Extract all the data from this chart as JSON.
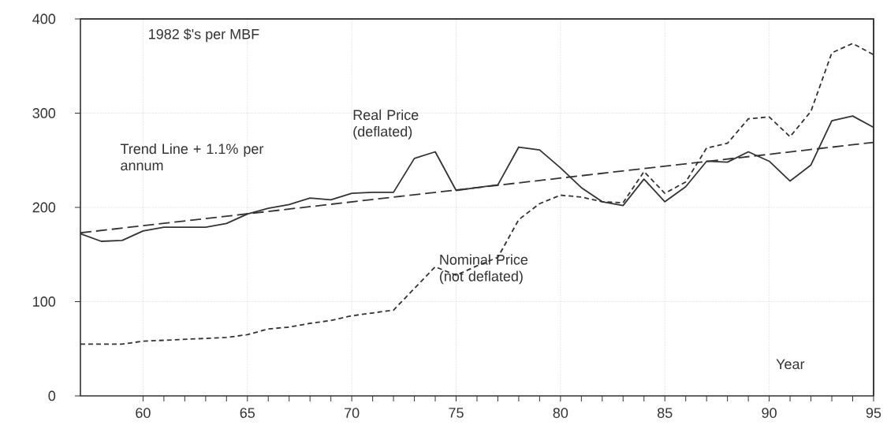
{
  "chart_data": {
    "type": "line",
    "ylabel": "1982 $'s per MBF",
    "xlabel": "Year",
    "x": [
      57,
      58,
      59,
      60,
      61,
      62,
      63,
      64,
      65,
      66,
      67,
      68,
      69,
      70,
      71,
      72,
      73,
      74,
      75,
      76,
      77,
      78,
      79,
      80,
      81,
      82,
      83,
      84,
      85,
      86,
      87,
      88,
      89,
      90,
      91,
      92,
      93,
      94,
      95
    ],
    "series": [
      {
        "name": "Real Price (deflated)",
        "color": "#333333",
        "line_style": "solid",
        "values": [
          172,
          164,
          165,
          175,
          179,
          179,
          179,
          183,
          193,
          199,
          203,
          210,
          208,
          215,
          216,
          216,
          252,
          259,
          218,
          221,
          224,
          264,
          261,
          242,
          221,
          206,
          202,
          230,
          206,
          222,
          249,
          248,
          259,
          249,
          228,
          245,
          292,
          297,
          285
        ]
      },
      {
        "name": "Nominal Price (not deflated)",
        "color": "#333333",
        "line_style": "dashed",
        "values": [
          55,
          55,
          55,
          58,
          59,
          60,
          61,
          62,
          65,
          71,
          73,
          77,
          80,
          85,
          88,
          91,
          114,
          137,
          128,
          138,
          147,
          187,
          204,
          213,
          211,
          206,
          205,
          238,
          215,
          227,
          263,
          268,
          294,
          296,
          275,
          302,
          364,
          374,
          362
        ]
      },
      {
        "name": "Trend Line + 1.1% per annum",
        "type": "line",
        "color": "#333333",
        "line_style": "dashed",
        "x": [
          57,
          95
        ],
        "values": [
          173,
          269
        ]
      }
    ],
    "xlim": [
      57,
      95
    ],
    "ylim": [
      0,
      400
    ],
    "xticks": [
      60,
      65,
      70,
      75,
      80,
      85,
      90,
      95
    ],
    "yticks": [
      0,
      100,
      200,
      300,
      400
    ],
    "grid": true,
    "marker": "none"
  }
}
